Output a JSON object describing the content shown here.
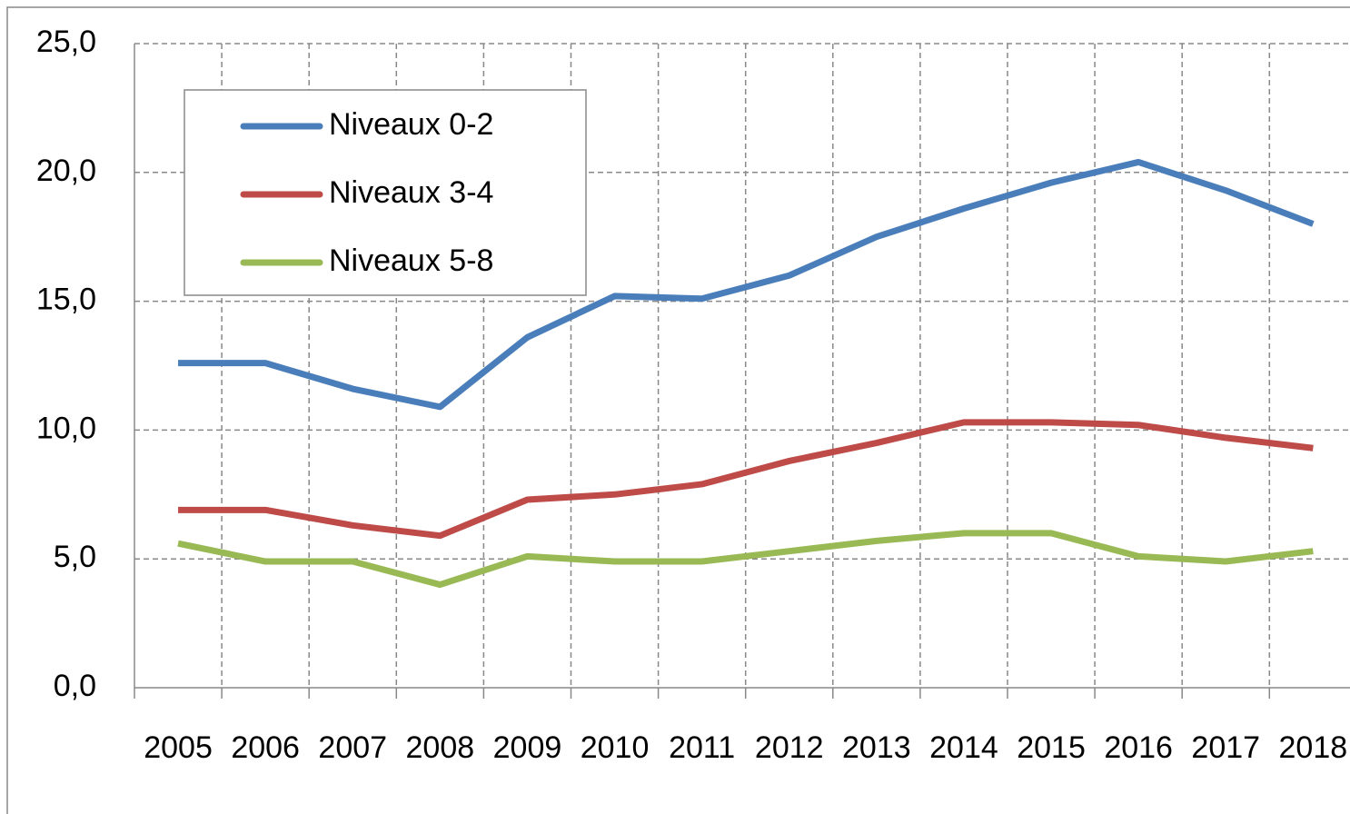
{
  "chart_data": {
    "type": "line",
    "categories": [
      "2005",
      "2006",
      "2007",
      "2008",
      "2009",
      "2010",
      "2011",
      "2012",
      "2013",
      "2014",
      "2015",
      "2016",
      "2017",
      "2018"
    ],
    "series": [
      {
        "name": "Niveaux 0-2",
        "color": "#4a7ebb",
        "values": [
          12.6,
          12.6,
          11.6,
          10.9,
          13.6,
          15.2,
          15.1,
          16.0,
          17.5,
          18.6,
          19.6,
          20.4,
          19.3,
          18.0
        ]
      },
      {
        "name": "Niveaux 3-4",
        "color": "#be4b48",
        "values": [
          6.9,
          6.9,
          6.3,
          5.9,
          7.3,
          7.5,
          7.9,
          8.8,
          9.5,
          10.3,
          10.3,
          10.2,
          9.7,
          9.3
        ]
      },
      {
        "name": "Niveaux 5-8",
        "color": "#98b954",
        "values": [
          5.6,
          4.9,
          4.9,
          4.0,
          5.1,
          4.9,
          4.9,
          5.3,
          5.7,
          6.0,
          6.0,
          5.1,
          4.9,
          5.3
        ]
      }
    ],
    "ylim": [
      0,
      25
    ],
    "yticks": [
      {
        "value": 0,
        "label": "0,0"
      },
      {
        "value": 5,
        "label": "5,0"
      },
      {
        "value": 10,
        "label": "10,0"
      },
      {
        "value": 15,
        "label": "15,0"
      },
      {
        "value": 20,
        "label": "20,0"
      },
      {
        "value": 25,
        "label": "25,0"
      }
    ],
    "grid": true,
    "legend": "upper left"
  }
}
